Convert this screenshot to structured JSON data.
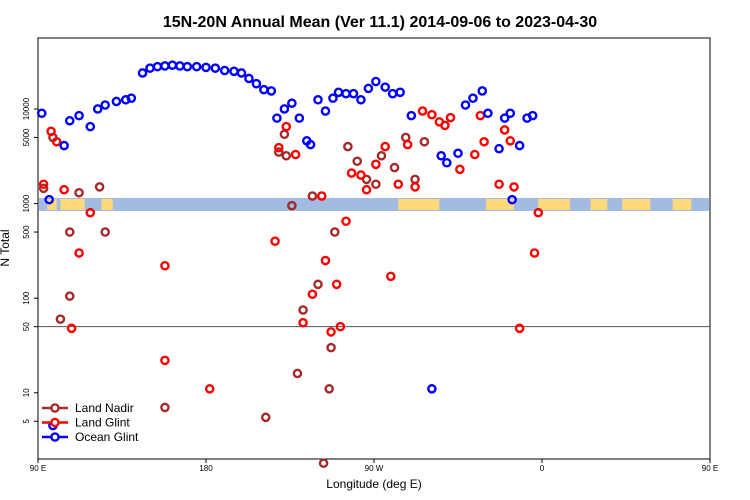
{
  "chart_data": {
    "type": "scatter",
    "title": "15N-20N Annual Mean (Ver 11.1)   2014-09-06 to 2023-04-30",
    "xlabel": "Longitude (deg E)",
    "ylabel": "N Total",
    "xlim": [
      90,
      450
    ],
    "ylim_log10": [
      0.3,
      4.75
    ],
    "y_scale": "log",
    "x_ticks": [
      {
        "value": 90,
        "label": "90 E"
      },
      {
        "value": 180,
        "label": "180"
      },
      {
        "value": 270,
        "label": "90 W"
      },
      {
        "value": 360,
        "label": "0"
      },
      {
        "value": 450,
        "label": "90 E"
      },
      {
        "value": 540,
        "label": "180"
      }
    ],
    "y_ticks": [
      {
        "value": 5,
        "label": "5"
      },
      {
        "value": 10,
        "label": "10"
      },
      {
        "value": 50,
        "label": "50"
      },
      {
        "value": 100,
        "label": "100"
      },
      {
        "value": 500,
        "label": "500"
      },
      {
        "value": 1000,
        "label": "1000"
      },
      {
        "value": 5000,
        "label": "5000"
      },
      {
        "value": 10000,
        "label": "10000"
      }
    ],
    "reference_line": 50,
    "legend_position": "bottom-left",
    "series": [
      {
        "name": "Land Nadir",
        "color": "#a52a2a",
        "points": [
          [
            93,
            1450
          ],
          [
            98,
            5000
          ],
          [
            102,
            60
          ],
          [
            107,
            105
          ],
          [
            107,
            500
          ],
          [
            112,
            1300
          ],
          [
            123,
            1500
          ],
          [
            126,
            500
          ],
          [
            158,
            7
          ],
          [
            212,
            5.5
          ],
          [
            219,
            3500
          ],
          [
            222,
            5400
          ],
          [
            223,
            3200
          ],
          [
            226,
            950
          ],
          [
            229,
            16
          ],
          [
            232,
            75
          ],
          [
            237,
            1200
          ],
          [
            240,
            140
          ],
          [
            243,
            1.8
          ],
          [
            246,
            11
          ],
          [
            247,
            30
          ],
          [
            249,
            500
          ],
          [
            256,
            4000
          ],
          [
            261,
            2800
          ],
          [
            266,
            1800
          ],
          [
            271,
            1600
          ],
          [
            274,
            3200
          ],
          [
            281,
            2400
          ],
          [
            287,
            5000
          ],
          [
            292,
            1800
          ],
          [
            297,
            4500
          ]
        ]
      },
      {
        "name": "Land Glint",
        "color": "#ff0000",
        "points": [
          [
            93,
            1600
          ],
          [
            97,
            5800
          ],
          [
            100,
            4500
          ],
          [
            104,
            1400
          ],
          [
            108,
            48
          ],
          [
            112,
            300
          ],
          [
            118,
            800
          ],
          [
            158,
            220
          ],
          [
            158,
            22
          ],
          [
            182,
            11
          ],
          [
            217,
            400
          ],
          [
            219,
            3900
          ],
          [
            223,
            6500
          ],
          [
            228,
            3300
          ],
          [
            232,
            55
          ],
          [
            237,
            110
          ],
          [
            242,
            1200
          ],
          [
            244,
            250
          ],
          [
            247,
            44
          ],
          [
            250,
            140
          ],
          [
            252,
            50
          ],
          [
            255,
            650
          ],
          [
            258,
            2100
          ],
          [
            263,
            2000
          ],
          [
            266,
            1400
          ],
          [
            271,
            2600
          ],
          [
            276,
            4000
          ],
          [
            279,
            170
          ],
          [
            283,
            1600
          ],
          [
            288,
            4200
          ],
          [
            292,
            1500
          ],
          [
            296,
            9500
          ],
          [
            301,
            8700
          ],
          [
            305,
            7300
          ],
          [
            308,
            6700
          ],
          [
            311,
            8100
          ],
          [
            316,
            2300
          ],
          [
            324,
            3300
          ],
          [
            327,
            8500
          ],
          [
            329,
            4500
          ],
          [
            337,
            1600
          ],
          [
            340,
            6000
          ],
          [
            343,
            4600
          ],
          [
            345,
            1500
          ],
          [
            348,
            48
          ],
          [
            356,
            300
          ],
          [
            358,
            800
          ]
        ]
      },
      {
        "name": "Ocean Glint",
        "color": "#0000ff",
        "points": [
          [
            92,
            9000
          ],
          [
            96,
            1100
          ],
          [
            98,
            4.5
          ],
          [
            104,
            4100
          ],
          [
            107,
            7500
          ],
          [
            112,
            8500
          ],
          [
            118,
            6500
          ],
          [
            122,
            10000
          ],
          [
            126,
            11000
          ],
          [
            132,
            12000
          ],
          [
            137,
            12500
          ],
          [
            140,
            13000
          ],
          [
            146,
            24000
          ],
          [
            150,
            27000
          ],
          [
            154,
            28000
          ],
          [
            158,
            28500
          ],
          [
            162,
            29000
          ],
          [
            166,
            28500
          ],
          [
            170,
            28000
          ],
          [
            175,
            28000
          ],
          [
            180,
            27500
          ],
          [
            185,
            27000
          ],
          [
            190,
            25500
          ],
          [
            195,
            25000
          ],
          [
            199,
            24000
          ],
          [
            203,
            21000
          ],
          [
            207,
            18500
          ],
          [
            211,
            16000
          ],
          [
            215,
            15500
          ],
          [
            218,
            8000
          ],
          [
            222,
            10000
          ],
          [
            226,
            11500
          ],
          [
            230,
            8000
          ],
          [
            234,
            4600
          ],
          [
            236,
            4200
          ],
          [
            240,
            12500
          ],
          [
            244,
            9500
          ],
          [
            248,
            13000
          ],
          [
            251,
            15000
          ],
          [
            255,
            14500
          ],
          [
            259,
            14500
          ],
          [
            263,
            12500
          ],
          [
            267,
            16500
          ],
          [
            271,
            19500
          ],
          [
            276,
            17000
          ],
          [
            280,
            14500
          ],
          [
            284,
            15000
          ],
          [
            290,
            8500
          ],
          [
            301,
            11
          ],
          [
            306,
            3200
          ],
          [
            309,
            2700
          ],
          [
            315,
            3400
          ],
          [
            319,
            11000
          ],
          [
            323,
            13000
          ],
          [
            328,
            15500
          ],
          [
            331,
            9000
          ],
          [
            337,
            3800
          ],
          [
            340,
            8000
          ],
          [
            343,
            9000
          ],
          [
            344,
            1100
          ],
          [
            348,
            4100
          ],
          [
            352,
            8000
          ],
          [
            355,
            8500
          ]
        ]
      }
    ]
  },
  "map_band": {
    "ocean_color": "#a3bbe0",
    "land_color": "#ffd97a"
  }
}
